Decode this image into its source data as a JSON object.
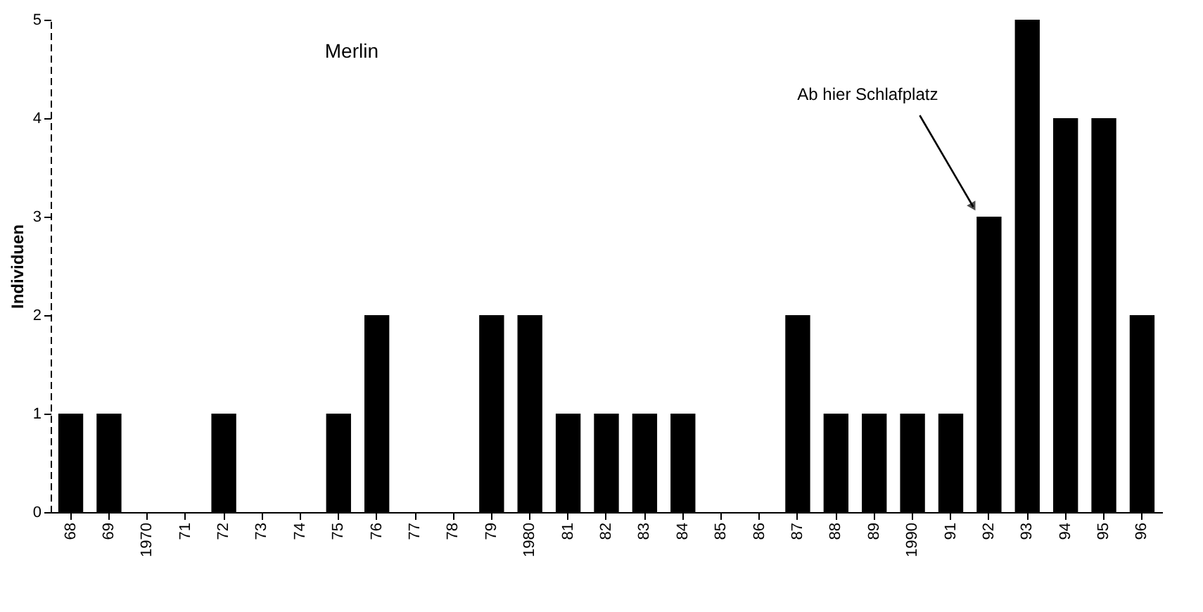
{
  "chart_data": {
    "type": "bar",
    "title": "Merlin",
    "ylabel": "Individuen",
    "categories": [
      "68",
      "69",
      "1970",
      "71",
      "72",
      "73",
      "74",
      "75",
      "76",
      "77",
      "78",
      "79",
      "1980",
      "81",
      "82",
      "83",
      "84",
      "85",
      "86",
      "87",
      "88",
      "89",
      "1990",
      "91",
      "92",
      "93",
      "94",
      "95",
      "96"
    ],
    "values": [
      1,
      1,
      0,
      0,
      1,
      0,
      0,
      1,
      2,
      0,
      0,
      2,
      2,
      1,
      1,
      1,
      1,
      0,
      0,
      2,
      1,
      1,
      1,
      1,
      3,
      5,
      4,
      4,
      2
    ],
    "color": "#000000",
    "ylim": [
      0,
      5
    ],
    "yticks": [
      0,
      1,
      2,
      3,
      4,
      5
    ],
    "grid": false,
    "annotations": [
      "Ab hier Schlafplatz"
    ]
  }
}
